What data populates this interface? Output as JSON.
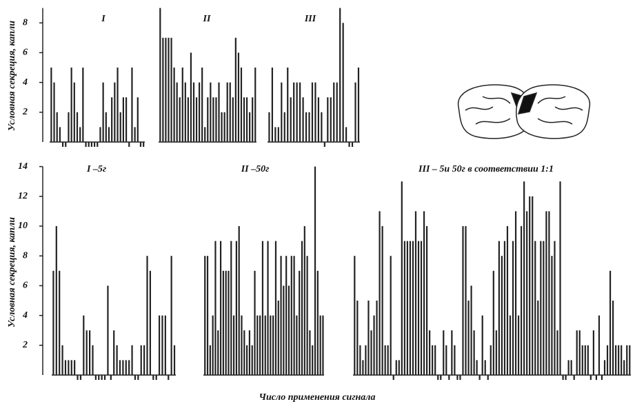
{
  "chart_data": [
    {
      "type": "bar",
      "title": "I",
      "ylabel": "Условная секреция, капли",
      "ylim": [
        0,
        9
      ],
      "yticks": [
        2,
        4,
        6,
        8
      ],
      "color": "#222",
      "values": [
        5,
        4,
        2,
        1,
        0,
        0,
        2,
        5,
        4,
        2,
        1,
        5,
        0,
        0,
        0,
        0,
        0,
        1,
        4,
        2,
        1,
        3,
        4,
        5,
        2,
        3,
        3,
        0,
        5,
        1,
        3,
        0,
        0
      ]
    },
    {
      "type": "bar",
      "title": "II",
      "ylim": [
        0,
        9
      ],
      "color": "#222",
      "values": [
        9,
        7,
        7,
        7,
        7,
        5,
        4,
        3,
        5,
        4,
        3,
        6,
        4,
        3,
        4,
        5,
        1,
        3,
        4,
        3,
        3,
        4,
        2,
        2,
        4,
        4,
        3,
        7,
        6,
        5,
        3,
        3,
        2,
        3,
        5
      ]
    },
    {
      "type": "bar",
      "title": "III",
      "ylim": [
        0,
        9
      ],
      "color": "#222",
      "values": [
        2,
        5,
        1,
        1,
        4,
        2,
        5,
        3,
        4,
        4,
        4,
        3,
        2,
        2,
        4,
        4,
        3,
        2,
        0,
        3,
        3,
        4,
        4,
        9,
        8,
        1,
        0,
        0,
        4,
        5
      ]
    },
    {
      "type": "bar",
      "title": "I –5г",
      "ylabel": "Условная секреция, капли",
      "ylim": [
        0,
        14
      ],
      "yticks": [
        2,
        4,
        6,
        8,
        10,
        12,
        14
      ],
      "color": "#222",
      "values": [
        7,
        10,
        7,
        2,
        1,
        1,
        1,
        1,
        0,
        0,
        4,
        3,
        3,
        2,
        0,
        0,
        0,
        0,
        6,
        0,
        3,
        2,
        1,
        1,
        1,
        1,
        2,
        0,
        0,
        2,
        2,
        8,
        7,
        0,
        0,
        4,
        4,
        4,
        0,
        8,
        2
      ]
    },
    {
      "type": "bar",
      "title": "II –50г",
      "ylim": [
        0,
        14
      ],
      "color": "#222",
      "values": [
        8,
        8,
        2,
        4,
        9,
        3,
        9,
        7,
        7,
        7,
        9,
        4,
        9,
        10,
        4,
        3,
        2,
        3,
        2,
        7,
        4,
        4,
        9,
        4,
        9,
        4,
        4,
        9,
        5,
        8,
        6,
        8,
        6,
        8,
        8,
        4,
        7,
        9,
        10,
        8,
        3,
        2,
        14,
        7,
        4,
        4
      ]
    },
    {
      "type": "bar",
      "title": "III – 5и 50г в соответствии 1:1",
      "ylim": [
        0,
        14
      ],
      "color": "#222",
      "values": [
        8,
        5,
        2,
        1,
        2,
        5,
        3,
        4,
        5,
        11,
        10,
        2,
        2,
        8,
        0,
        1,
        1,
        13,
        9,
        9,
        9,
        9,
        11,
        9,
        9,
        11,
        10,
        3,
        2,
        2,
        0,
        0,
        3,
        2,
        0,
        3,
        2,
        0,
        0,
        10,
        10,
        5,
        6,
        3,
        1,
        0,
        4,
        1,
        0,
        2,
        7,
        3,
        9,
        8,
        9,
        10,
        4,
        9,
        11,
        4,
        10,
        13,
        11,
        12,
        12,
        9,
        5,
        9,
        9,
        11,
        11,
        8,
        9,
        3,
        13,
        0,
        0,
        1,
        1,
        0,
        3,
        3,
        2,
        2,
        2,
        0,
        3,
        0,
        4,
        0,
        1,
        2,
        7,
        5,
        2,
        2,
        2,
        1,
        2,
        2
      ]
    }
  ],
  "xlabel": "Число применения сигнала"
}
